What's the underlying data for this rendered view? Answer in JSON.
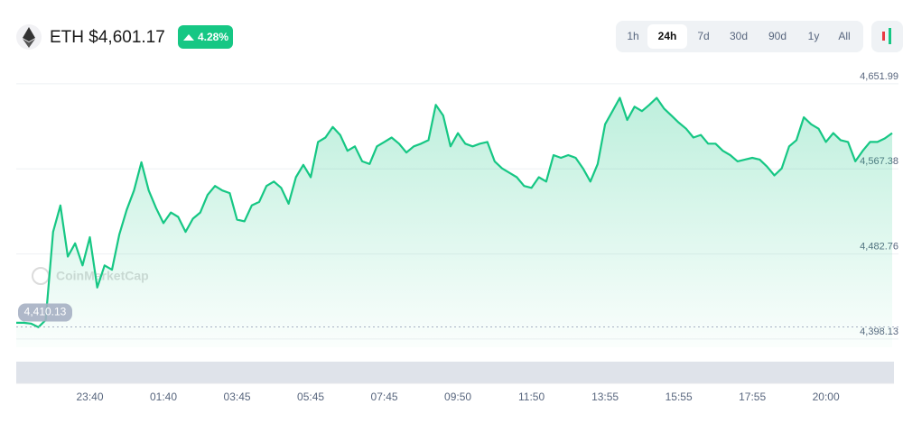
{
  "header": {
    "title": "ETH $4,601.17",
    "change": "4.28%"
  },
  "timeframes": [
    "1h",
    "24h",
    "7d",
    "30d",
    "90d",
    "1y",
    "All"
  ],
  "active_timeframe": "24h",
  "chart_data": {
    "type": "line",
    "watermark": "CoinMarketCap",
    "reference": {
      "value": 4410.13,
      "label": "4,410.13"
    },
    "ylim": [
      4390,
      4668
    ],
    "yticks": [
      {
        "value": 4651.99,
        "label": "4,651.99"
      },
      {
        "value": 4567.38,
        "label": "4,567.38"
      },
      {
        "value": 4482.76,
        "label": "4,482.76"
      },
      {
        "value": 4398.13,
        "label": "4,398.13"
      }
    ],
    "grid": true,
    "categories": [
      null,
      null,
      null,
      null,
      null,
      null,
      null,
      null,
      null,
      null,
      "23:40",
      null,
      null,
      null,
      null,
      null,
      null,
      null,
      null,
      null,
      "01:40",
      null,
      null,
      null,
      null,
      null,
      null,
      null,
      null,
      null,
      "03:45",
      null,
      null,
      null,
      null,
      null,
      null,
      null,
      null,
      null,
      "05:45",
      null,
      null,
      null,
      null,
      null,
      null,
      null,
      null,
      null,
      "07:45",
      null,
      null,
      null,
      null,
      null,
      null,
      null,
      null,
      null,
      "09:50",
      null,
      null,
      null,
      null,
      null,
      null,
      null,
      null,
      null,
      "11:50",
      null,
      null,
      null,
      null,
      null,
      null,
      null,
      null,
      null,
      "13:55",
      null,
      null,
      null,
      null,
      null,
      null,
      null,
      null,
      null,
      "15:55",
      null,
      null,
      null,
      null,
      null,
      null,
      null,
      null,
      null,
      "17:55",
      null,
      null,
      null,
      null,
      null,
      null,
      null,
      null,
      null,
      "20:00",
      null,
      null,
      null,
      null,
      null,
      null,
      null,
      null,
      null
    ],
    "series": [
      {
        "color": "#16c784",
        "values": [
          4414.3,
          4414.3,
          4413.5,
          4409.9,
          4417.0,
          4504.7,
          4531.0,
          4480.1,
          4493.3,
          4471.3,
          4499.4,
          4449.4,
          4471.3,
          4467.0,
          4502.0,
          4526.6,
          4545.9,
          4573.9,
          4545.9,
          4528.3,
          4513.4,
          4524.0,
          4519.6,
          4504.7,
          4517.8,
          4524.0,
          4541.5,
          4550.3,
          4545.9,
          4543.3,
          4516.9,
          4515.2,
          4531.0,
          4534.5,
          4550.3,
          4554.7,
          4548.5,
          4532.7,
          4559.0,
          4571.3,
          4559.0,
          4594.1,
          4598.5,
          4609.0,
          4601.1,
          4585.3,
          4589.7,
          4574.8,
          4572.2,
          4589.7,
          4594.1,
          4598.5,
          4592.4,
          4583.6,
          4589.7,
          4592.4,
          4595.9,
          4631.0,
          4620.4,
          4589.7,
          4602.9,
          4592.4,
          4589.7,
          4592.4,
          4594.1,
          4574.8,
          4567.8,
          4563.4,
          4559.0,
          4550.3,
          4548.5,
          4559.0,
          4554.7,
          4581.0,
          4578.3,
          4581.0,
          4578.3,
          4567.8,
          4554.7,
          4572.2,
          4611.7,
          4624.8,
          4638.0,
          4616.0,
          4629.2,
          4624.8,
          4631.0,
          4638.0,
          4627.4,
          4620.4,
          4613.4,
          4607.3,
          4598.5,
          4601.1,
          4592.4,
          4592.4,
          4585.3,
          4581.0,
          4574.8,
          4576.6,
          4578.3,
          4576.6,
          4569.6,
          4560.8,
          4567.8,
          4589.7,
          4595.9,
          4618.7,
          4611.7,
          4607.3,
          4594.1,
          4602.9,
          4595.9,
          4594.1,
          4574.8,
          4585.3,
          4594.1,
          4594.1,
          4597.6,
          4602.9
        ]
      }
    ]
  }
}
